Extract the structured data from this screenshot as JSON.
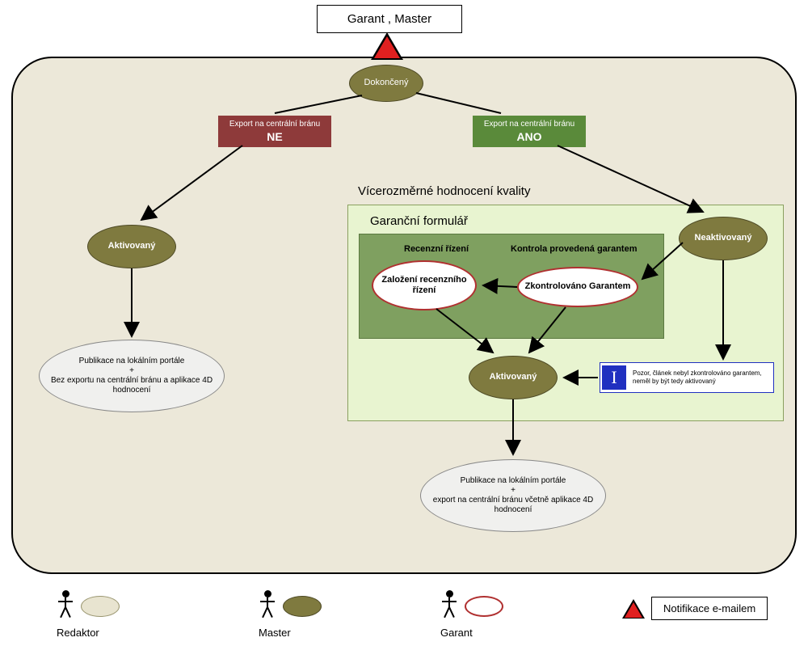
{
  "colors": {
    "panel_bg": "#ece8d9",
    "olive": "#7f7a3f",
    "olive_border": "#4d4925",
    "red_badge": "#8e3a3a",
    "green_badge": "#5a8a3a",
    "garant_red": "#b03030",
    "quality_panel_bg": "#e8f4d0",
    "quality_panel_border": "#8aa060",
    "form_panel_bg": "#7fa060",
    "form_panel_border": "#5a7840",
    "grey_fill": "#f0f0ee",
    "triangle_fill": "#e02020",
    "triangle_border": "#000000",
    "info_border": "#2030c0",
    "info_i_bg": "#2030c0",
    "redaktor_fill": "#e8e4d0",
    "redaktor_border": "#9a9670"
  },
  "header": {
    "label": "Garant ,  Master"
  },
  "nodes": {
    "dokonceny": "Dokončený",
    "aktivovany_left": "Aktivovaný",
    "neaktivovany": "Neaktivovaný",
    "zalozeni": "Založení recenzního řízení",
    "zkontrolovano": "Zkontrolováno Garantem",
    "aktivovany_center": "Aktivovaný",
    "pub_left_l1": "Publikace na lokálním portále",
    "pub_left_l2": "+",
    "pub_left_l3": "Bez exportu na centrální bránu a aplikace 4D hodnocení",
    "pub_right_l1": "Publikace na lokálním portále",
    "pub_right_l2": "+",
    "pub_right_l3": "export na centrální bránu včetně aplikace 4D hodnocení"
  },
  "badges": {
    "ne_top": "Export na centrální bránu",
    "ne_main": "NE",
    "ano_top": "Export  na centrální bránu",
    "ano_main": "ANO"
  },
  "panels": {
    "quality_title": "Vícerozměrné hodnocení kvality",
    "form_title": "Garanční formulář",
    "recenzni": "Recenzní řízení",
    "kontrola": "Kontrola provedená garantem"
  },
  "info": "Pozor, článek nebyl zkontrolováno garantem, neměl by být tedy aktivovaný",
  "legend": {
    "redaktor": "Redaktor",
    "master": "Master",
    "garant": "Garant",
    "notif": "Notifikace e-mailem"
  }
}
